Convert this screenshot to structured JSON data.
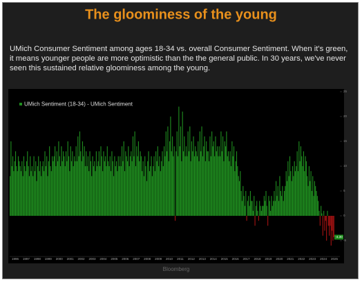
{
  "chart_data": {
    "type": "bar",
    "title": "The gloominess of the young",
    "subtitle": "UMich Consumer Sentiment among ages 18-34 vs. overall Consumer Sentiment. When it's green, it means younger people are more optimistic than the the general public. In 30 years, we've never seen this sustained relative gloominess among the young.",
    "legend": "UMich Sentiment (18-34) - UMich Sentiment",
    "source": "Bloomberg",
    "years": [
      "1996",
      "1997",
      "1998",
      "1999",
      "2000",
      "2001",
      "2002",
      "2003",
      "2004",
      "2005",
      "2006",
      "2007",
      "2008",
      "2009",
      "2010",
      "2011",
      "2012",
      "2013",
      "2014",
      "2015",
      "2016",
      "2017",
      "2018",
      "2019",
      "2020",
      "2021",
      "2022",
      "2023",
      "2024",
      "2025"
    ],
    "values": [
      8,
      15,
      10,
      12,
      9,
      11,
      13,
      10,
      9,
      12,
      11,
      10,
      9,
      11,
      8,
      12,
      10,
      9,
      11,
      13,
      10,
      8,
      12,
      9,
      10,
      8,
      12,
      9,
      11,
      7,
      10,
      12,
      9,
      11,
      8,
      10,
      11,
      9,
      13,
      10,
      12,
      8,
      11,
      14,
      10,
      9,
      12,
      11,
      12,
      14,
      10,
      13,
      11,
      15,
      12,
      10,
      14,
      11,
      13,
      12,
      10,
      13,
      11,
      15,
      12,
      9,
      14,
      11,
      13,
      10,
      12,
      11,
      14,
      11,
      16,
      12,
      17,
      13,
      11,
      15,
      12,
      14,
      10,
      13,
      10,
      12,
      9,
      13,
      11,
      8,
      12,
      10,
      11,
      9,
      13,
      10,
      11,
      13,
      10,
      14,
      12,
      9,
      13,
      11,
      12,
      10,
      14,
      11,
      10,
      12,
      9,
      13,
      11,
      8,
      12,
      10,
      11,
      9,
      12,
      10,
      12,
      10,
      14,
      11,
      15,
      9,
      13,
      12,
      11,
      14,
      10,
      12,
      13,
      11,
      16,
      12,
      17,
      10,
      14,
      12,
      15,
      11,
      13,
      12,
      9,
      11,
      8,
      12,
      10,
      7,
      11,
      13,
      9,
      10,
      12,
      8,
      10,
      12,
      9,
      13,
      11,
      14,
      10,
      12,
      9,
      11,
      13,
      10,
      14,
      12,
      17,
      13,
      18,
      11,
      15,
      20,
      13,
      16,
      12,
      14,
      -1,
      13,
      17,
      12,
      22,
      14,
      18,
      11,
      21,
      13,
      16,
      12,
      14,
      12,
      17,
      13,
      18,
      11,
      15,
      13,
      16,
      12,
      14,
      13,
      12,
      15,
      11,
      17,
      13,
      18,
      12,
      14,
      16,
      11,
      15,
      13,
      13,
      11,
      16,
      12,
      17,
      14,
      15,
      12,
      16,
      13,
      14,
      12,
      14,
      12,
      17,
      13,
      16,
      11,
      15,
      14,
      17,
      12,
      13,
      11,
      13,
      10,
      15,
      12,
      14,
      9,
      11,
      13,
      10,
      8,
      7,
      9,
      5,
      3,
      6,
      4,
      2,
      5,
      -1,
      3,
      4,
      2,
      5,
      3,
      3,
      1,
      4,
      -2,
      2,
      3,
      1,
      -1,
      3,
      2,
      1,
      2,
      2,
      4,
      3,
      5,
      2,
      -2,
      4,
      3,
      1,
      4,
      2,
      3,
      5,
      3,
      7,
      4,
      6,
      3,
      8,
      5,
      4,
      6,
      3,
      5,
      6,
      9,
      7,
      11,
      8,
      12,
      9,
      7,
      10,
      8,
      11,
      9,
      10,
      13,
      9,
      15,
      11,
      14,
      12,
      10,
      13,
      9,
      12,
      11,
      8,
      6,
      10,
      7,
      9,
      5,
      8,
      4,
      7,
      6,
      5,
      4,
      3,
      1,
      -2,
      2,
      0.5,
      -4,
      1,
      -3,
      -1,
      -5,
      1,
      -2,
      -4,
      -2,
      -6,
      -3,
      -5,
      -4.3,
      null,
      null,
      null,
      null,
      null,
      null
    ],
    "last_value_label": "-4.30",
    "positive_color": "#1f8c1f",
    "negative_color": "#a31212",
    "ylim": [
      -8,
      25.5
    ],
    "yticks": [
      -5,
      0,
      5,
      10,
      15,
      20,
      25
    ]
  }
}
